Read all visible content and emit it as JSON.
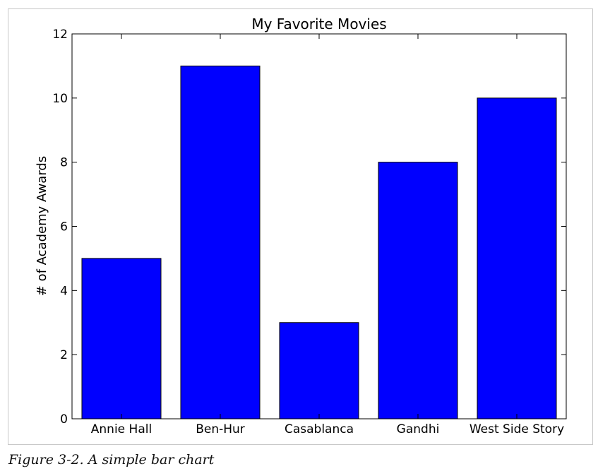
{
  "chart_data": {
    "type": "bar",
    "title": "My Favorite Movies",
    "xlabel": "",
    "ylabel": "# of Academy Awards",
    "categories": [
      "Annie Hall",
      "Ben-Hur",
      "Casablanca",
      "Gandhi",
      "West Side Story"
    ],
    "values": [
      5,
      11,
      3,
      8,
      10
    ],
    "ylim": [
      0,
      12
    ],
    "yticks": [
      "0",
      "2",
      "4",
      "6",
      "8",
      "10",
      "12"
    ],
    "bar_color": "#0000ff",
    "grid": false,
    "legend": "none"
  },
  "caption": "Figure 3-2. A simple bar chart"
}
